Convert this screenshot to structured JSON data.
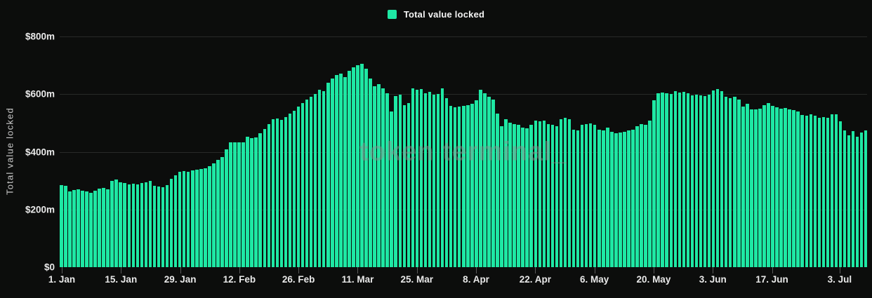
{
  "legend": {
    "label": "Total value locked"
  },
  "watermark_text": "token terminal_",
  "y_axis_title": "Total value locked",
  "colors": {
    "background": "#0c0d0c",
    "bar_green": "#1ee8a4",
    "gridline": "#282a28",
    "axis_label": "#e9e9e9",
    "axis_title": "#c9c9c9",
    "watermark": "#8d9290"
  },
  "chart_data": {
    "type": "bar",
    "title": "Total value locked",
    "series_name": "Total value locked",
    "unit": "$m",
    "ylim": [
      0,
      800
    ],
    "y_tick_values": [
      800,
      600,
      400,
      200,
      0
    ],
    "y_tick_labels": [
      "$800m",
      "$600m",
      "$400m",
      "$200m",
      "$0"
    ],
    "grid": true,
    "legend_position": "top-center",
    "bar_color": "#1ee8a4",
    "x_ticks": [
      {
        "label": "1. Jan",
        "index": 0
      },
      {
        "label": "15. Jan",
        "index": 14
      },
      {
        "label": "29. Jan",
        "index": 28
      },
      {
        "label": "12. Feb",
        "index": 42
      },
      {
        "label": "26. Feb",
        "index": 56
      },
      {
        "label": "11. Mar",
        "index": 70
      },
      {
        "label": "25. Mar",
        "index": 84
      },
      {
        "label": "8. Apr",
        "index": 98
      },
      {
        "label": "22. Apr",
        "index": 112
      },
      {
        "label": "6. May",
        "index": 126
      },
      {
        "label": "20. May",
        "index": 140
      },
      {
        "label": "3. Jun",
        "index": 154
      },
      {
        "label": "17. Jun",
        "index": 168
      },
      {
        "label": "3. Jul",
        "index": 184
      }
    ],
    "values": [
      285,
      283,
      263,
      268,
      270,
      266,
      262,
      258,
      265,
      272,
      275,
      270,
      299,
      304,
      295,
      292,
      287,
      289,
      287,
      292,
      294,
      299,
      282,
      280,
      277,
      285,
      306,
      318,
      330,
      333,
      331,
      336,
      338,
      340,
      343,
      350,
      360,
      372,
      382,
      409,
      433,
      433,
      433,
      434,
      452,
      447,
      450,
      464,
      480,
      495,
      512,
      515,
      510,
      520,
      532,
      542,
      556,
      570,
      582,
      590,
      600,
      615,
      610,
      640,
      655,
      667,
      671,
      660,
      680,
      692,
      700,
      705,
      688,
      655,
      627,
      635,
      619,
      602,
      541,
      594,
      598,
      562,
      570,
      620,
      615,
      618,
      603,
      608,
      598,
      601,
      620,
      586,
      560,
      554,
      556,
      560,
      562,
      567,
      578,
      615,
      603,
      590,
      582,
      533,
      489,
      513,
      501,
      497,
      494,
      485,
      482,
      494,
      509,
      506,
      509,
      497,
      493,
      489,
      513,
      517,
      513,
      477,
      473,
      494,
      497,
      498,
      494,
      477,
      473,
      485,
      470,
      465,
      466,
      470,
      473,
      477,
      489,
      497,
      494,
      509,
      578,
      603,
      606,
      604,
      601,
      610,
      605,
      608,
      603,
      596,
      598,
      596,
      594,
      598,
      612,
      617,
      610,
      590,
      586,
      590,
      582,
      558,
      566,
      546,
      546,
      550,
      562,
      570,
      560,
      555,
      550,
      553,
      548,
      545,
      539,
      527,
      525,
      530,
      525,
      517,
      521,
      519,
      531,
      530,
      506,
      473,
      458,
      471,
      452,
      466,
      474
    ]
  }
}
